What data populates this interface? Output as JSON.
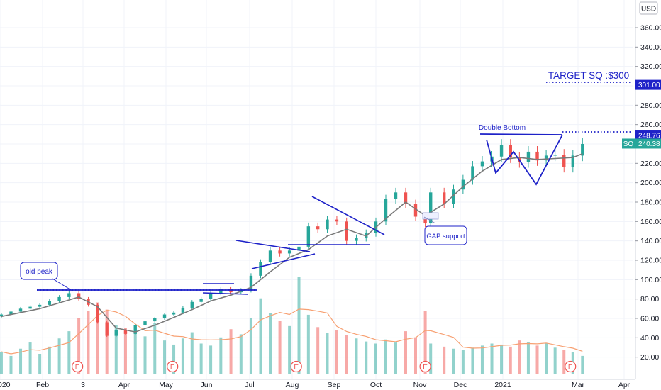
{
  "currency_button": "USD",
  "chart_data": {
    "type": "candlestick",
    "symbol": "SQ",
    "ylim": [
      0,
      385
    ],
    "y_ticks": [
      20,
      40,
      60,
      80,
      100,
      120,
      140,
      160,
      180,
      200,
      220,
      240,
      260,
      280,
      300,
      320,
      340,
      360
    ],
    "y_tick_labels": [
      "20.00",
      "40.00",
      "60.00",
      "80.00",
      "100.00",
      "120.00",
      "140.00",
      "160.00",
      "180.00",
      "200.00",
      "220.00",
      "240.00",
      "260.00",
      "280.00",
      "300.00",
      "320.00",
      "340.00",
      "360.00"
    ],
    "x_tick_labels": [
      {
        "label": "020",
        "date": "2020-01-01"
      },
      {
        "label": "Feb",
        "date": "2020-02-01"
      },
      {
        "label": "3",
        "date": "2020-03-01"
      },
      {
        "label": "Apr",
        "date": "2020-04-01"
      },
      {
        "label": "May",
        "date": "2020-05-01"
      },
      {
        "label": "Jun",
        "date": "2020-06-01"
      },
      {
        "label": "Jul",
        "date": "2020-07-01"
      },
      {
        "label": "Aug",
        "date": "2020-08-01"
      },
      {
        "label": "Sep",
        "date": "2020-09-01"
      },
      {
        "label": "Oct",
        "date": "2020-10-01"
      },
      {
        "label": "Nov",
        "date": "2020-11-01"
      },
      {
        "label": "Dec",
        "date": "2020-12-01"
      },
      {
        "label": "2021",
        "date": "2021-01-01"
      },
      {
        "label": "Mar",
        "date": "2021-03-01"
      },
      {
        "label": "Apr",
        "date": "2021-04-01"
      }
    ],
    "price_labels": [
      {
        "value": 301.0,
        "label": "301.00",
        "color": "#1e22c8"
      },
      {
        "value": 248.76,
        "label": "248.76",
        "color": "#1e22c8"
      },
      {
        "value": 240.38,
        "label": "240.38",
        "symbol": "SQ",
        "color": "#26a69a"
      }
    ],
    "close_series": [
      [
        "2020-01-02",
        64
      ],
      [
        "2020-01-09",
        67
      ],
      [
        "2020-01-16",
        70
      ],
      [
        "2020-01-23",
        72
      ],
      [
        "2020-01-30",
        74
      ],
      [
        "2020-02-06",
        78
      ],
      [
        "2020-02-13",
        82
      ],
      [
        "2020-02-20",
        86
      ],
      [
        "2020-02-27",
        80
      ],
      [
        "2020-03-05",
        74
      ],
      [
        "2020-03-12",
        56
      ],
      [
        "2020-03-19",
        42
      ],
      [
        "2020-03-26",
        48
      ],
      [
        "2020-04-02",
        44
      ],
      [
        "2020-04-09",
        53
      ],
      [
        "2020-04-16",
        57
      ],
      [
        "2020-04-23",
        60
      ],
      [
        "2020-04-30",
        64
      ],
      [
        "2020-05-07",
        66
      ],
      [
        "2020-05-14",
        71
      ],
      [
        "2020-05-21",
        77
      ],
      [
        "2020-05-28",
        80
      ],
      [
        "2020-06-04",
        86
      ],
      [
        "2020-06-11",
        90
      ],
      [
        "2020-06-18",
        87
      ],
      [
        "2020-06-25",
        89
      ],
      [
        "2020-07-02",
        104
      ],
      [
        "2020-07-09",
        118
      ],
      [
        "2020-07-16",
        130
      ],
      [
        "2020-07-23",
        127
      ],
      [
        "2020-07-30",
        130
      ],
      [
        "2020-08-06",
        134
      ],
      [
        "2020-08-13",
        155
      ],
      [
        "2020-08-20",
        152
      ],
      [
        "2020-08-27",
        162
      ],
      [
        "2020-09-03",
        160
      ],
      [
        "2020-09-10",
        140
      ],
      [
        "2020-09-17",
        143
      ],
      [
        "2020-09-24",
        148
      ],
      [
        "2020-10-01",
        160
      ],
      [
        "2020-10-08",
        183
      ],
      [
        "2020-10-15",
        190
      ],
      [
        "2020-10-22",
        178
      ],
      [
        "2020-10-29",
        165
      ],
      [
        "2020-11-05",
        158
      ],
      [
        "2020-11-09",
        190
      ],
      [
        "2020-11-19",
        178
      ],
      [
        "2020-11-26",
        193
      ],
      [
        "2020-12-03",
        203
      ],
      [
        "2020-12-10",
        217
      ],
      [
        "2020-12-17",
        222
      ],
      [
        "2020-12-24",
        227
      ],
      [
        "2020-12-31",
        239
      ],
      [
        "2021-01-07",
        226
      ],
      [
        "2021-01-14",
        221
      ],
      [
        "2021-01-21",
        232
      ],
      [
        "2021-01-28",
        223
      ],
      [
        "2021-02-04",
        228
      ],
      [
        "2021-02-11",
        229
      ],
      [
        "2021-02-18",
        216
      ],
      [
        "2021-02-25",
        228
      ],
      [
        "2021-03-04",
        240
      ]
    ],
    "ma_series": [
      [
        "2020-01-02",
        62
      ],
      [
        "2020-01-16",
        66
      ],
      [
        "2020-01-30",
        70
      ],
      [
        "2020-02-13",
        76
      ],
      [
        "2020-02-27",
        82
      ],
      [
        "2020-03-12",
        72
      ],
      [
        "2020-03-26",
        50
      ],
      [
        "2020-04-09",
        46
      ],
      [
        "2020-04-23",
        53
      ],
      [
        "2020-05-07",
        61
      ],
      [
        "2020-05-21",
        69
      ],
      [
        "2020-06-04",
        78
      ],
      [
        "2020-06-18",
        84
      ],
      [
        "2020-07-02",
        92
      ],
      [
        "2020-07-16",
        108
      ],
      [
        "2020-07-30",
        123
      ],
      [
        "2020-08-13",
        131
      ],
      [
        "2020-08-27",
        145
      ],
      [
        "2020-09-10",
        152
      ],
      [
        "2020-09-24",
        145
      ],
      [
        "2020-10-08",
        163
      ],
      [
        "2020-10-22",
        180
      ],
      [
        "2020-11-05",
        166
      ],
      [
        "2020-11-19",
        178
      ],
      [
        "2020-12-03",
        196
      ],
      [
        "2020-12-17",
        212
      ],
      [
        "2020-12-31",
        224
      ],
      [
        "2021-01-14",
        226
      ],
      [
        "2021-01-28",
        224
      ],
      [
        "2021-02-11",
        225
      ],
      [
        "2021-02-25",
        226
      ],
      [
        "2021-03-04",
        230
      ]
    ],
    "volume_series_relative": [
      0.22,
      0.18,
      0.25,
      0.31,
      0.2,
      0.27,
      0.35,
      0.42,
      0.55,
      0.62,
      0.7,
      0.63,
      0.48,
      0.45,
      0.4,
      0.37,
      0.5,
      0.33,
      0.29,
      0.35,
      0.41,
      0.3,
      0.28,
      0.36,
      0.44,
      0.39,
      0.55,
      0.74,
      0.6,
      0.52,
      0.47,
      0.95,
      0.58,
      0.46,
      0.4,
      0.43,
      0.38,
      0.35,
      0.32,
      0.3,
      0.34,
      0.31,
      0.42,
      0.36,
      0.62,
      0.3,
      0.27,
      0.25,
      0.24,
      0.26,
      0.28,
      0.3,
      0.29,
      0.27,
      0.33,
      0.31,
      0.28,
      0.3,
      0.26,
      0.24,
      0.22,
      0.18
    ],
    "earnings_dates": [
      "2020-02-26",
      "2020-05-06",
      "2020-08-04",
      "2020-11-05",
      "2021-02-23"
    ],
    "earnings_label": "E",
    "annotations": [
      {
        "id": "old-peak",
        "text": "old peak"
      },
      {
        "id": "double-bottom",
        "text": "Double Bottom"
      },
      {
        "id": "target",
        "text": "TARGET SQ :$300"
      },
      {
        "id": "gap-support",
        "text": "GAP support"
      }
    ]
  }
}
